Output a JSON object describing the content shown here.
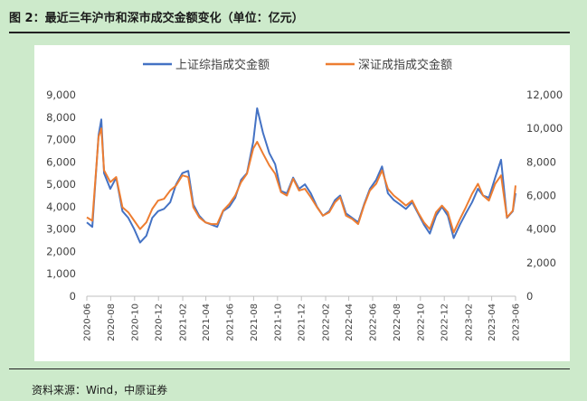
{
  "figure": {
    "title": "图 2：最近三年沪市和深市成交金额变化（单位：亿元）",
    "source": "资料来源：Wind，中原证券"
  },
  "chart_data": {
    "type": "line",
    "title": "",
    "xlabel": "",
    "ylabel": "",
    "x_range": [
      "2020-06",
      "2023-06"
    ],
    "x_ticks": [
      "2020-06",
      "2020-08",
      "2020-10",
      "2020-12",
      "2021-02",
      "2021-04",
      "2021-06",
      "2021-08",
      "2021-10",
      "2021-12",
      "2022-02",
      "2022-04",
      "2022-06",
      "2022-08",
      "2022-10",
      "2022-12",
      "2023-02",
      "2023-04",
      "2023-06"
    ],
    "y_left": {
      "lim": [
        0,
        9000
      ],
      "ticks": [
        "0",
        "1,000",
        "2,000",
        "3,000",
        "4,000",
        "5,000",
        "6,000",
        "7,000",
        "8,000",
        "9,000"
      ]
    },
    "y_right": {
      "lim": [
        0,
        12000
      ],
      "ticks": [
        "0",
        "2,000",
        "4,000",
        "6,000",
        "8,000",
        "10,000",
        "12,000"
      ]
    },
    "grid": false,
    "legend": "top",
    "series": [
      {
        "name": "上证综指成交金额",
        "axis": "left",
        "color": "#4472C4",
        "x": [
          "2020-06-01",
          "2020-06-15",
          "2020-07-01",
          "2020-07-08",
          "2020-07-15",
          "2020-07-31",
          "2020-08-15",
          "2020-08-31",
          "2020-09-15",
          "2020-09-30",
          "2020-10-15",
          "2020-10-31",
          "2020-11-15",
          "2020-11-30",
          "2020-12-15",
          "2020-12-31",
          "2021-01-15",
          "2021-01-31",
          "2021-02-15",
          "2021-02-28",
          "2021-03-15",
          "2021-03-31",
          "2021-04-15",
          "2021-04-30",
          "2021-05-15",
          "2021-05-31",
          "2021-06-15",
          "2021-06-30",
          "2021-07-15",
          "2021-07-31",
          "2021-08-10",
          "2021-08-25",
          "2021-09-10",
          "2021-09-25",
          "2021-10-10",
          "2021-10-25",
          "2021-11-10",
          "2021-11-25",
          "2021-12-10",
          "2021-12-25",
          "2022-01-10",
          "2022-01-25",
          "2022-02-10",
          "2022-02-25",
          "2022-03-10",
          "2022-03-25",
          "2022-04-10",
          "2022-04-25",
          "2022-05-10",
          "2022-05-25",
          "2022-06-10",
          "2022-06-25",
          "2022-07-10",
          "2022-07-25",
          "2022-08-10",
          "2022-08-25",
          "2022-09-10",
          "2022-09-25",
          "2022-10-10",
          "2022-10-25",
          "2022-11-10",
          "2022-11-25",
          "2022-12-10",
          "2022-12-25",
          "2023-01-10",
          "2023-01-25",
          "2023-02-10",
          "2023-02-25",
          "2023-03-10",
          "2023-03-25",
          "2023-04-10",
          "2023-04-25",
          "2023-05-10",
          "2023-05-25",
          "2023-06-01"
        ],
        "values": [
          3300,
          3100,
          7200,
          7900,
          5500,
          4800,
          5300,
          3800,
          3500,
          3000,
          2400,
          2700,
          3500,
          3800,
          3900,
          4200,
          5000,
          5500,
          5600,
          4100,
          3600,
          3300,
          3200,
          3100,
          3800,
          4000,
          4400,
          5200,
          5500,
          6900,
          8400,
          7300,
          6400,
          5900,
          4700,
          4600,
          5300,
          4800,
          5000,
          4600,
          4000,
          3600,
          3800,
          4300,
          4500,
          3700,
          3500,
          3300,
          4100,
          4800,
          5200,
          5800,
          4600,
          4300,
          4100,
          3900,
          4200,
          3700,
          3200,
          2800,
          3600,
          4000,
          3600,
          2600,
          3200,
          3700,
          4200,
          4800,
          4500,
          4400,
          5300,
          6100,
          3500,
          3800,
          4600
        ]
      },
      {
        "name": "深证成指成交金额",
        "axis": "right",
        "color": "#ED7D31",
        "x": [
          "2020-06-01",
          "2020-06-15",
          "2020-07-01",
          "2020-07-08",
          "2020-07-15",
          "2020-07-31",
          "2020-08-15",
          "2020-08-31",
          "2020-09-15",
          "2020-09-30",
          "2020-10-15",
          "2020-10-31",
          "2020-11-15",
          "2020-11-30",
          "2020-12-15",
          "2020-12-31",
          "2021-01-15",
          "2021-01-31",
          "2021-02-15",
          "2021-02-28",
          "2021-03-15",
          "2021-03-31",
          "2021-04-15",
          "2021-04-30",
          "2021-05-15",
          "2021-05-31",
          "2021-06-15",
          "2021-06-30",
          "2021-07-15",
          "2021-07-31",
          "2021-08-10",
          "2021-08-25",
          "2021-09-10",
          "2021-09-25",
          "2021-10-10",
          "2021-10-25",
          "2021-11-10",
          "2021-11-25",
          "2021-12-10",
          "2021-12-25",
          "2022-01-10",
          "2022-01-25",
          "2022-02-10",
          "2022-02-25",
          "2022-03-10",
          "2022-03-25",
          "2022-04-10",
          "2022-04-25",
          "2022-05-10",
          "2022-05-25",
          "2022-06-10",
          "2022-06-25",
          "2022-07-10",
          "2022-07-25",
          "2022-08-10",
          "2022-08-25",
          "2022-09-10",
          "2022-09-25",
          "2022-10-10",
          "2022-10-25",
          "2022-11-10",
          "2022-11-25",
          "2022-12-10",
          "2022-12-25",
          "2023-01-10",
          "2023-01-25",
          "2023-02-10",
          "2023-02-25",
          "2023-03-10",
          "2023-03-25",
          "2023-04-10",
          "2023-04-25",
          "2023-05-10",
          "2023-05-25",
          "2023-06-01"
        ],
        "values": [
          4700,
          4500,
          9500,
          10000,
          7500,
          6800,
          7100,
          5300,
          5000,
          4500,
          4000,
          4400,
          5200,
          5700,
          5800,
          6300,
          6600,
          7200,
          7100,
          5300,
          4700,
          4400,
          4300,
          4300,
          5100,
          5500,
          6000,
          6800,
          7300,
          8800,
          9200,
          8500,
          7800,
          7300,
          6200,
          6000,
          7000,
          6300,
          6400,
          5900,
          5300,
          4800,
          5000,
          5600,
          5900,
          4800,
          4600,
          4300,
          5400,
          6300,
          6700,
          7500,
          6400,
          6000,
          5700,
          5400,
          5700,
          5000,
          4400,
          4000,
          5000,
          5400,
          5000,
          3800,
          4600,
          5300,
          6100,
          6700,
          6000,
          5700,
          6700,
          7200,
          4700,
          5100,
          6600
        ]
      }
    ]
  }
}
